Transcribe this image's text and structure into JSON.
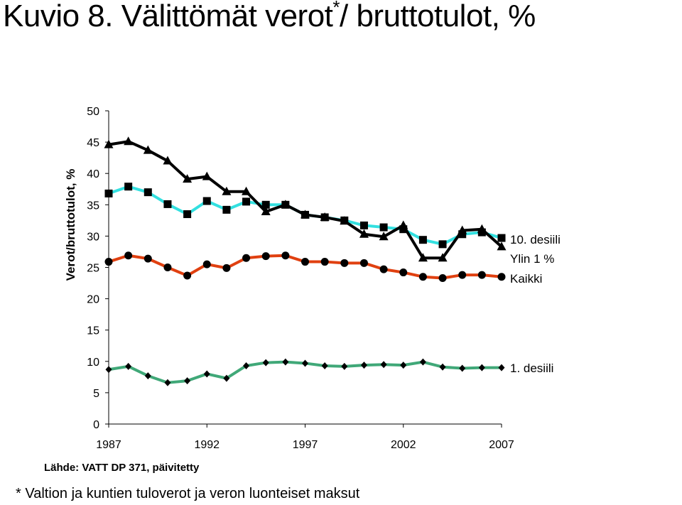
{
  "header": {
    "title_main": "Kuvio 8.  Välittömät verot",
    "title_star": "*",
    "title_tail": "/ bruttotulot, %"
  },
  "source": "Lähde: VATT DP 371, päivitetty",
  "footnote": "* Valtion ja kuntien tuloverot ja veron luonteiset maksut",
  "chart_data": {
    "type": "line",
    "title": "",
    "xlabel": "",
    "ylabel": "Verot/bruttotulot, %",
    "ylim": [
      0,
      50
    ],
    "y_ticks": [
      0,
      5,
      10,
      15,
      20,
      25,
      30,
      35,
      40,
      45,
      50
    ],
    "x_ticks": [
      1987,
      1992,
      1997,
      2002,
      2007
    ],
    "x": [
      1987,
      1988,
      1989,
      1990,
      1991,
      1992,
      1993,
      1994,
      1995,
      1996,
      1997,
      1998,
      1999,
      2000,
      2001,
      2002,
      2003,
      2004,
      2005,
      2006,
      2007
    ],
    "grid": false,
    "legend": "direct labels at line ends (right)",
    "series": [
      {
        "name": "10. desiili",
        "color": "#33e0e0",
        "marker": "square",
        "marker_color": "#000000",
        "values": [
          36.8,
          37.9,
          37.0,
          35.1,
          33.5,
          35.6,
          34.2,
          35.5,
          35.0,
          35.0,
          33.4,
          33.0,
          32.5,
          31.7,
          31.4,
          31.1,
          29.4,
          28.7,
          30.3,
          30.6,
          29.7
        ]
      },
      {
        "name": "Ylin 1 %",
        "color": "#000000",
        "marker": "triangle",
        "marker_color": "#000000",
        "values": [
          44.6,
          45.1,
          43.7,
          42.0,
          39.1,
          39.5,
          37.1,
          37.1,
          33.9,
          35.0,
          33.4,
          33.0,
          32.4,
          30.3,
          29.9,
          31.7,
          26.5,
          26.5,
          30.9,
          31.1,
          28.3
        ]
      },
      {
        "name": "Kaikki",
        "color": "#e04010",
        "marker": "circle",
        "marker_color": "#000000",
        "values": [
          25.9,
          26.9,
          26.4,
          25.0,
          23.7,
          25.5,
          24.9,
          26.5,
          26.8,
          26.9,
          25.9,
          25.9,
          25.7,
          25.7,
          24.7,
          24.2,
          23.5,
          23.3,
          23.8,
          23.8,
          23.5
        ]
      },
      {
        "name": "1. desiili",
        "color": "#40a878",
        "marker": "diamond",
        "marker_color": "#000000",
        "values": [
          8.7,
          9.2,
          7.7,
          6.6,
          6.9,
          8.0,
          7.3,
          9.3,
          9.8,
          9.9,
          9.7,
          9.3,
          9.2,
          9.4,
          9.5,
          9.4,
          9.9,
          9.1,
          8.9,
          9.0,
          9.0
        ]
      }
    ]
  }
}
